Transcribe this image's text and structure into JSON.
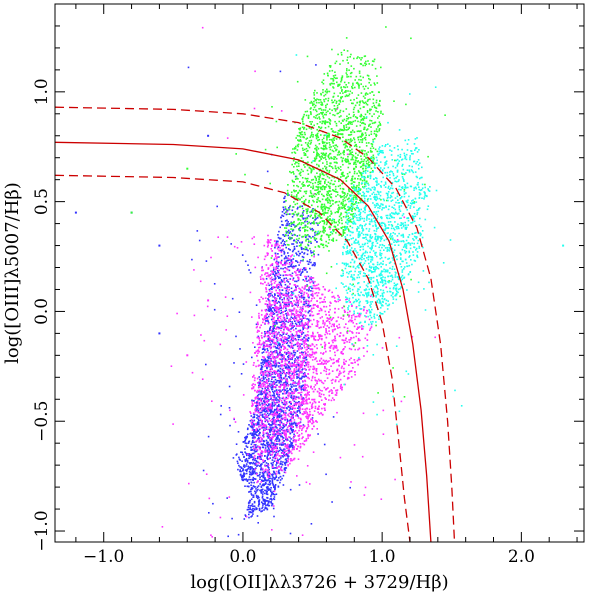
{
  "chart_data": {
    "type": "scatter",
    "title": "",
    "xlabel": "log([OII]λλ3726 + 3729/Hβ)",
    "ylabel": "log([OIII]λ5007/Hβ)",
    "xlim": [
      -1.35,
      2.45
    ],
    "ylim": [
      -1.05,
      1.4
    ],
    "x_ticks": [
      -1.0,
      0.0,
      1.0,
      2.0
    ],
    "x_tick_labels": [
      "−1.0",
      "0.0",
      "1.0",
      "2.0"
    ],
    "y_ticks": [
      -1.0,
      -0.5,
      0.0,
      0.5,
      1.0
    ],
    "y_tick_labels": [
      "−1.0",
      "−0.5",
      "0.0",
      "0.5",
      "1.0"
    ],
    "grid": false,
    "legend": "none",
    "series": [
      {
        "color": "#3333ff",
        "marker": "small dots",
        "centroid": [
          0.15,
          -0.55
        ],
        "cloud": [
          [
            0.05,
            -0.85
          ],
          [
            -0.05,
            -0.7
          ],
          [
            0.1,
            -0.4
          ],
          [
            0.15,
            -0.1
          ],
          [
            0.2,
            0.2
          ],
          [
            0.3,
            0.55
          ],
          [
            0.55,
            0.45
          ],
          [
            0.5,
            0.05
          ],
          [
            0.45,
            -0.35
          ],
          [
            0.35,
            -0.65
          ],
          [
            0.2,
            -0.9
          ],
          [
            0.0,
            -0.95
          ]
        ],
        "outliers": [
          [
            -0.8,
            0.45
          ],
          [
            -0.6,
            0.3
          ],
          [
            -0.25,
            0.8
          ],
          [
            -0.6,
            -0.1
          ],
          [
            -1.2,
            0.45
          ]
        ]
      },
      {
        "color": "#ff33ff",
        "marker": "small dots",
        "centroid": [
          0.35,
          -0.25
        ],
        "cloud": [
          [
            0.1,
            -0.8
          ],
          [
            0.05,
            -0.45
          ],
          [
            0.1,
            -0.05
          ],
          [
            0.15,
            0.35
          ],
          [
            0.3,
            0.3
          ],
          [
            0.6,
            0.1
          ],
          [
            0.95,
            0.0
          ],
          [
            0.9,
            -0.2
          ],
          [
            0.6,
            -0.45
          ],
          [
            0.35,
            -0.7
          ]
        ],
        "outliers": [
          [
            -0.4,
            -0.2
          ],
          [
            -0.25,
            0.05
          ]
        ]
      },
      {
        "color": "#33ff33",
        "marker": "small dots",
        "centroid": [
          0.7,
          0.6
        ],
        "cloud": [
          [
            0.3,
            0.45
          ],
          [
            0.35,
            0.75
          ],
          [
            0.5,
            1.0
          ],
          [
            0.7,
            1.2
          ],
          [
            0.95,
            1.15
          ],
          [
            1.0,
            0.9
          ],
          [
            0.95,
            0.65
          ],
          [
            0.75,
            0.35
          ],
          [
            0.5,
            0.25
          ],
          [
            0.3,
            0.3
          ]
        ],
        "outliers": [
          [
            -0.8,
            0.45
          ],
          [
            -0.4,
            0.65
          ]
        ]
      },
      {
        "color": "#22ffee",
        "marker": "small dots",
        "centroid": [
          1.0,
          0.3
        ],
        "cloud": [
          [
            0.7,
            0.15
          ],
          [
            0.75,
            0.5
          ],
          [
            0.95,
            0.75
          ],
          [
            1.25,
            0.8
          ],
          [
            1.35,
            0.55
          ],
          [
            1.3,
            0.3
          ],
          [
            1.1,
            0.05
          ],
          [
            0.9,
            -0.1
          ],
          [
            0.75,
            0.0
          ]
        ],
        "outliers": [
          [
            2.3,
            0.3
          ]
        ]
      }
    ],
    "curves": [
      {
        "style": "solid",
        "color": "#cc0000",
        "points": [
          [
            -1.35,
            0.77
          ],
          [
            -0.5,
            0.76
          ],
          [
            0.0,
            0.74
          ],
          [
            0.4,
            0.69
          ],
          [
            0.7,
            0.6
          ],
          [
            0.9,
            0.48
          ],
          [
            1.05,
            0.32
          ],
          [
            1.15,
            0.1
          ],
          [
            1.22,
            -0.15
          ],
          [
            1.28,
            -0.45
          ],
          [
            1.32,
            -0.75
          ],
          [
            1.35,
            -1.05
          ]
        ]
      },
      {
        "style": "dashed",
        "color": "#cc0000",
        "points": [
          [
            -1.35,
            0.93
          ],
          [
            -0.5,
            0.92
          ],
          [
            0.0,
            0.9
          ],
          [
            0.4,
            0.86
          ],
          [
            0.7,
            0.79
          ],
          [
            0.9,
            0.7
          ],
          [
            1.1,
            0.56
          ],
          [
            1.25,
            0.38
          ],
          [
            1.35,
            0.15
          ],
          [
            1.42,
            -0.15
          ],
          [
            1.47,
            -0.5
          ],
          [
            1.5,
            -0.8
          ],
          [
            1.52,
            -1.05
          ]
        ]
      },
      {
        "style": "dashed",
        "color": "#cc0000",
        "points": [
          [
            -1.35,
            0.62
          ],
          [
            -0.5,
            0.61
          ],
          [
            0.0,
            0.59
          ],
          [
            0.3,
            0.54
          ],
          [
            0.55,
            0.45
          ],
          [
            0.75,
            0.32
          ],
          [
            0.9,
            0.15
          ],
          [
            1.0,
            -0.05
          ],
          [
            1.07,
            -0.3
          ],
          [
            1.12,
            -0.6
          ],
          [
            1.16,
            -0.85
          ],
          [
            1.2,
            -1.05
          ]
        ]
      }
    ]
  }
}
